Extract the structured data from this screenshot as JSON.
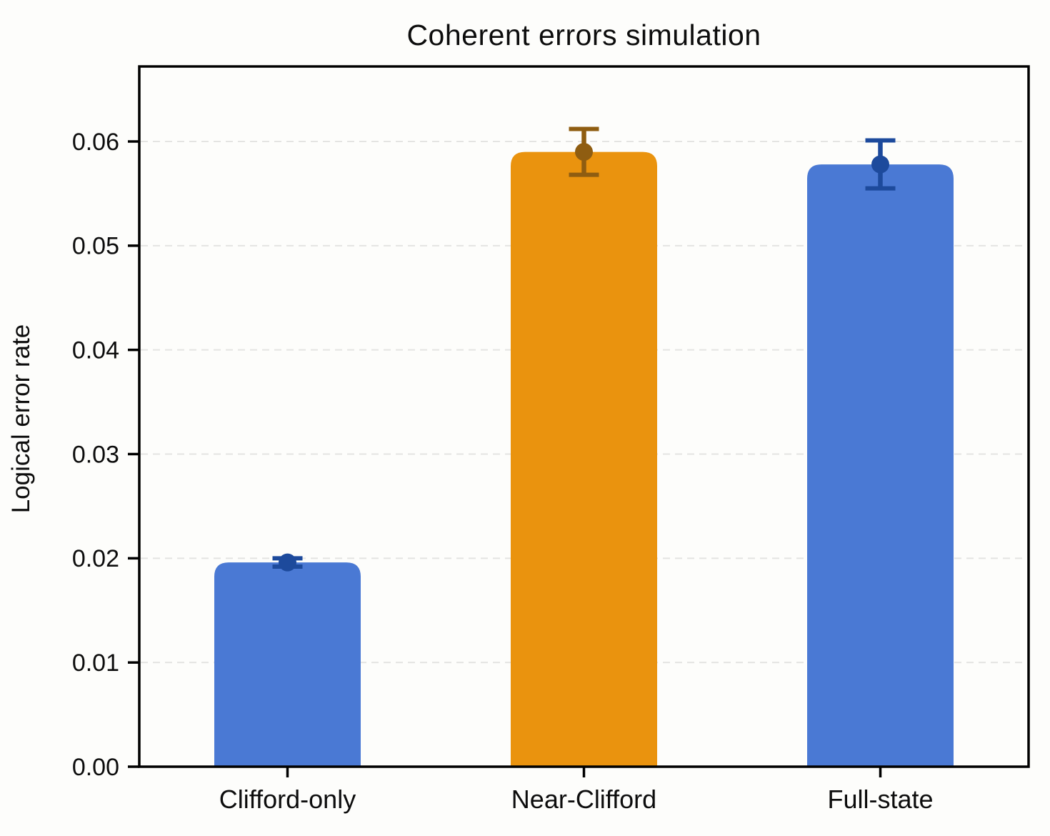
{
  "chart_data": {
    "type": "bar",
    "title": "Coherent errors simulation",
    "xlabel": "",
    "ylabel": "Logical error rate",
    "categories": [
      "Clifford-only",
      "Near-Clifford",
      "Full-state"
    ],
    "values": [
      0.0196,
      0.059,
      0.0578
    ],
    "error_bars": [
      0.0004,
      0.0022,
      0.0023
    ],
    "ylim": [
      0,
      0.0672
    ],
    "y_ticks": [
      0.0,
      0.01,
      0.02,
      0.03,
      0.04,
      0.05,
      0.06
    ],
    "y_tick_labels": [
      "0.00",
      "0.01",
      "0.02",
      "0.03",
      "0.04",
      "0.05",
      "0.06"
    ],
    "grid": "horizontal-dashed",
    "legend": "none",
    "bar_colors": [
      "#4a79d4",
      "#ea930e",
      "#4a79d4"
    ],
    "error_marker_colors": [
      "#1d4a9c",
      "#8f5d11",
      "#1d4a9c"
    ],
    "gridline_color": "#e4e4e2",
    "axis_color": "#000000",
    "background_color": "#fdfdfb"
  }
}
